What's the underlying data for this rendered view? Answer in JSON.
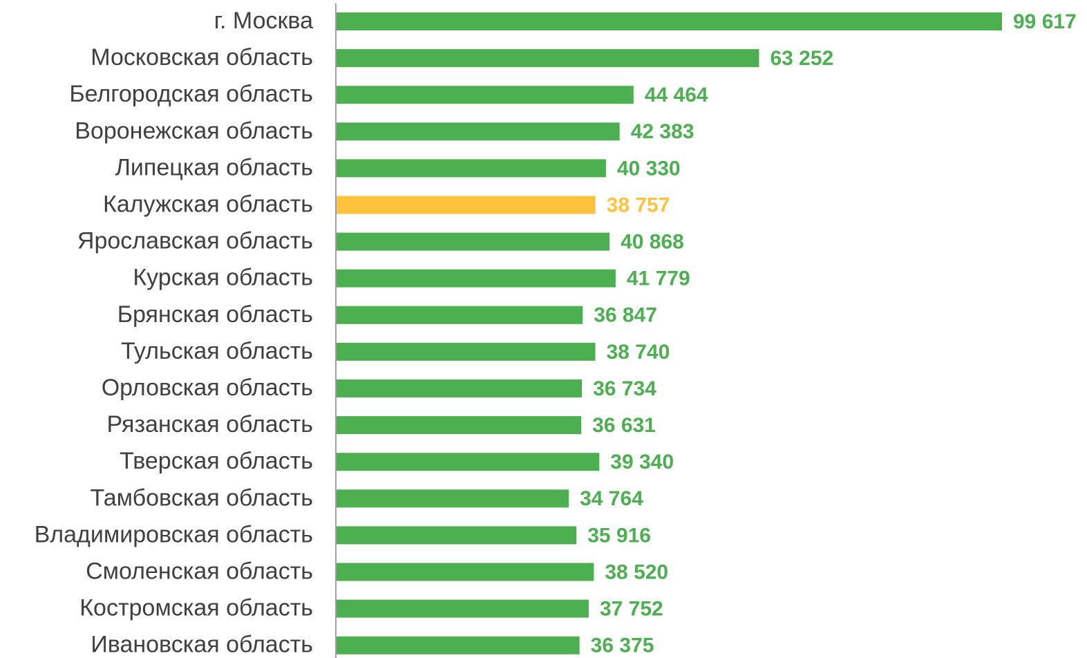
{
  "chart_data": {
    "type": "bar",
    "orientation": "horizontal",
    "categories": [
      "г. Москва",
      "Московская область",
      "Белгородская область",
      "Воронежская область",
      "Липецкая область",
      "Калужская область",
      "Ярославская область",
      "Курская область",
      "Брянская область",
      "Тульская область",
      "Орловская область",
      "Рязанская область",
      "Тверская область",
      "Тамбовская область",
      "Владимировская область",
      "Смоленская область",
      "Костромская область",
      "Ивановская область"
    ],
    "values": [
      99617,
      63252,
      44464,
      42383,
      40330,
      38757,
      40868,
      41779,
      36847,
      38740,
      36734,
      36631,
      39340,
      34764,
      35916,
      38520,
      37752,
      36375
    ],
    "value_labels": [
      "99 617",
      "63 252",
      "44 464",
      "42 383",
      "40 330",
      "38 757",
      "40 868",
      "41 779",
      "36 847",
      "38 740",
      "36 734",
      "36 631",
      "39 340",
      "34 764",
      "35 916",
      "38 520",
      "37 752",
      "36 375"
    ],
    "colors": [
      "#4caf50",
      "#4caf50",
      "#4caf50",
      "#4caf50",
      "#4caf50",
      "#ffc23c",
      "#4caf50",
      "#4caf50",
      "#4caf50",
      "#4caf50",
      "#4caf50",
      "#4caf50",
      "#4caf50",
      "#4caf50",
      "#4caf50",
      "#4caf50",
      "#4caf50",
      "#4caf50"
    ]
  }
}
